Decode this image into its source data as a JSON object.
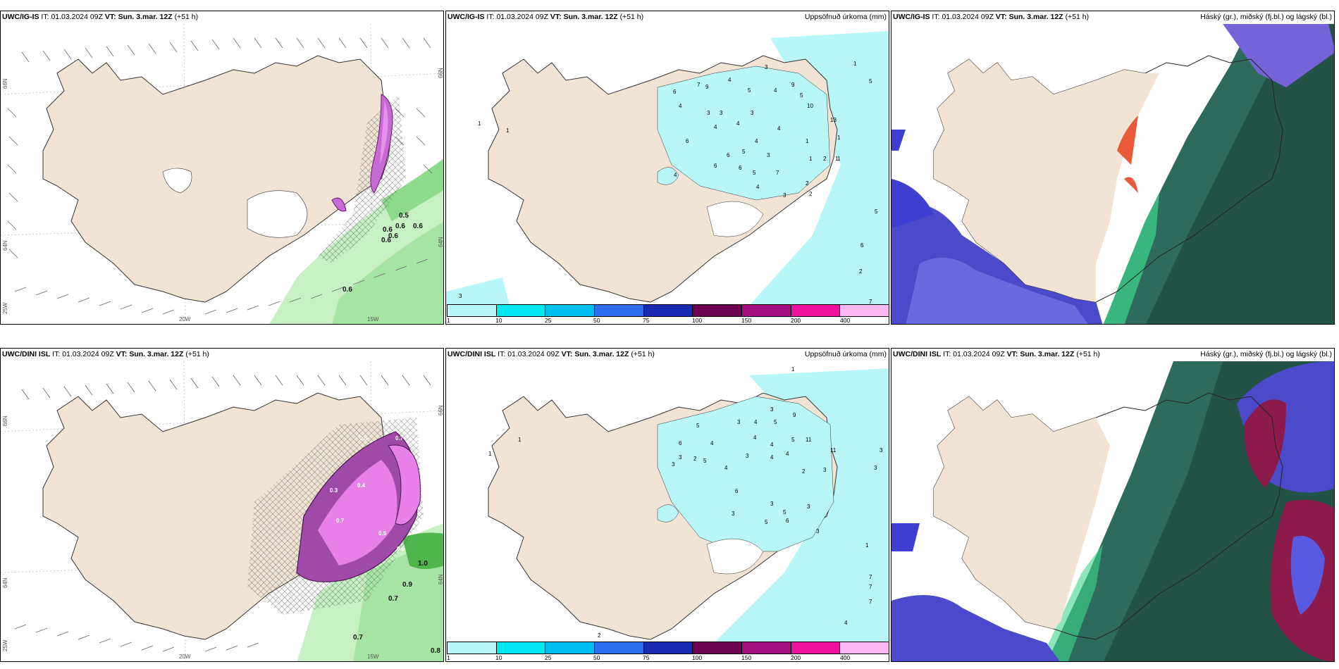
{
  "panels": [
    {
      "model": "UWC/IG-IS",
      "it_label": "IT:",
      "it": "01.03.2024 09Z",
      "vt_label": "VT:",
      "vt": "Sun. 3.mar. 12Z",
      "lead": "(+51 h)",
      "right_title": ""
    },
    {
      "model": "UWC/IG-IS",
      "it_label": "IT:",
      "it": "01.03.2024 09Z",
      "vt_label": "VT:",
      "vt": "Sun. 3.mar. 12Z",
      "lead": "(+51 h)",
      "right_title": "Uppsöfnuð úrkoma (mm)"
    },
    {
      "model": "UWC/IG-IS",
      "it_label": "IT:",
      "it": "01.03.2024 09Z",
      "vt_label": "VT:",
      "vt": "Sun. 3.mar. 12Z",
      "lead": "(+51 h)",
      "right_title": "Háský (gr.), miðský (fj.bl.) og lágský (bl.)"
    },
    {
      "model": "UWC/DINI ISL",
      "it_label": "IT:",
      "it": "01.03.2024 09Z",
      "vt_label": "VT:",
      "vt": "Sun. 3.mar. 12Z",
      "lead": "(+51 h)",
      "right_title": ""
    },
    {
      "model": "UWC/DINI ISL",
      "it_label": "IT:",
      "it": "01.03.2024 09Z",
      "vt_label": "VT:",
      "vt": "Sun. 3.mar. 12Z",
      "lead": "(+51 h)",
      "right_title": "Uppsöfnuð úrkoma (mm)"
    },
    {
      "model": "UWC/DINI ISL",
      "it_label": "IT:",
      "it": "01.03.2024 09Z",
      "vt_label": "VT:",
      "vt": "Sun. 3.mar. 12Z",
      "lead": "(+51 h)",
      "right_title": "Háský (gr.), miðský (fj.bl.) og lágský (bl.)"
    }
  ],
  "grid_labels": {
    "lon_20w": "20W",
    "lon_15w": "15W",
    "lat_66n": "66N",
    "lat_64n": "64N",
    "lat_25w": "25W"
  },
  "colorbar": {
    "labels": [
      "1",
      "10",
      "25",
      "50",
      "75",
      "100",
      "150",
      "200",
      "400"
    ],
    "colors": [
      "#b8f6f8",
      "#00e8f0",
      "#00c0f0",
      "#2e6cf0",
      "#1a2ab0",
      "#6a0050",
      "#a0107e",
      "#f0109e",
      "#f8b8f0"
    ]
  },
  "top_left_values": [
    "0.5",
    "0.6",
    "0.6",
    "0.6",
    "0.6",
    "0.6",
    "0.6"
  ],
  "bottom_left_values": [
    "0.5",
    "0.7",
    "0.4",
    "0.3",
    "0.7",
    "0.5",
    "0.5",
    "1.0",
    "0.9",
    "0.7",
    "0.7",
    "0.8"
  ],
  "top_precip_values": [
    "3",
    "1",
    "1",
    "7",
    "9",
    "4",
    "5",
    "6",
    "4",
    "3",
    "3",
    "4",
    "4",
    "5",
    "3",
    "10",
    "4",
    "6",
    "3",
    "9",
    "4",
    "13",
    "6",
    "1",
    "6",
    "3",
    "4",
    "5",
    "1",
    "6",
    "2",
    "5",
    "7",
    "1",
    "2",
    "4",
    "1",
    "4",
    "2",
    "3",
    "1",
    "5",
    "5",
    "6",
    "7",
    "2",
    "1"
  ],
  "bottom_precip_values": [
    "1",
    "1",
    "6",
    "5",
    "3",
    "3",
    "2",
    "4",
    "5",
    "4",
    "3",
    "4",
    "9",
    "3",
    "11",
    "5",
    "4",
    "4",
    "4",
    "11",
    "5",
    "3",
    "4",
    "2",
    "3",
    "3",
    "3",
    "6",
    "3",
    "5",
    "5",
    "6",
    "3",
    "3",
    "1",
    "3",
    "7",
    "7",
    "7",
    "4",
    "2",
    "1"
  ]
}
